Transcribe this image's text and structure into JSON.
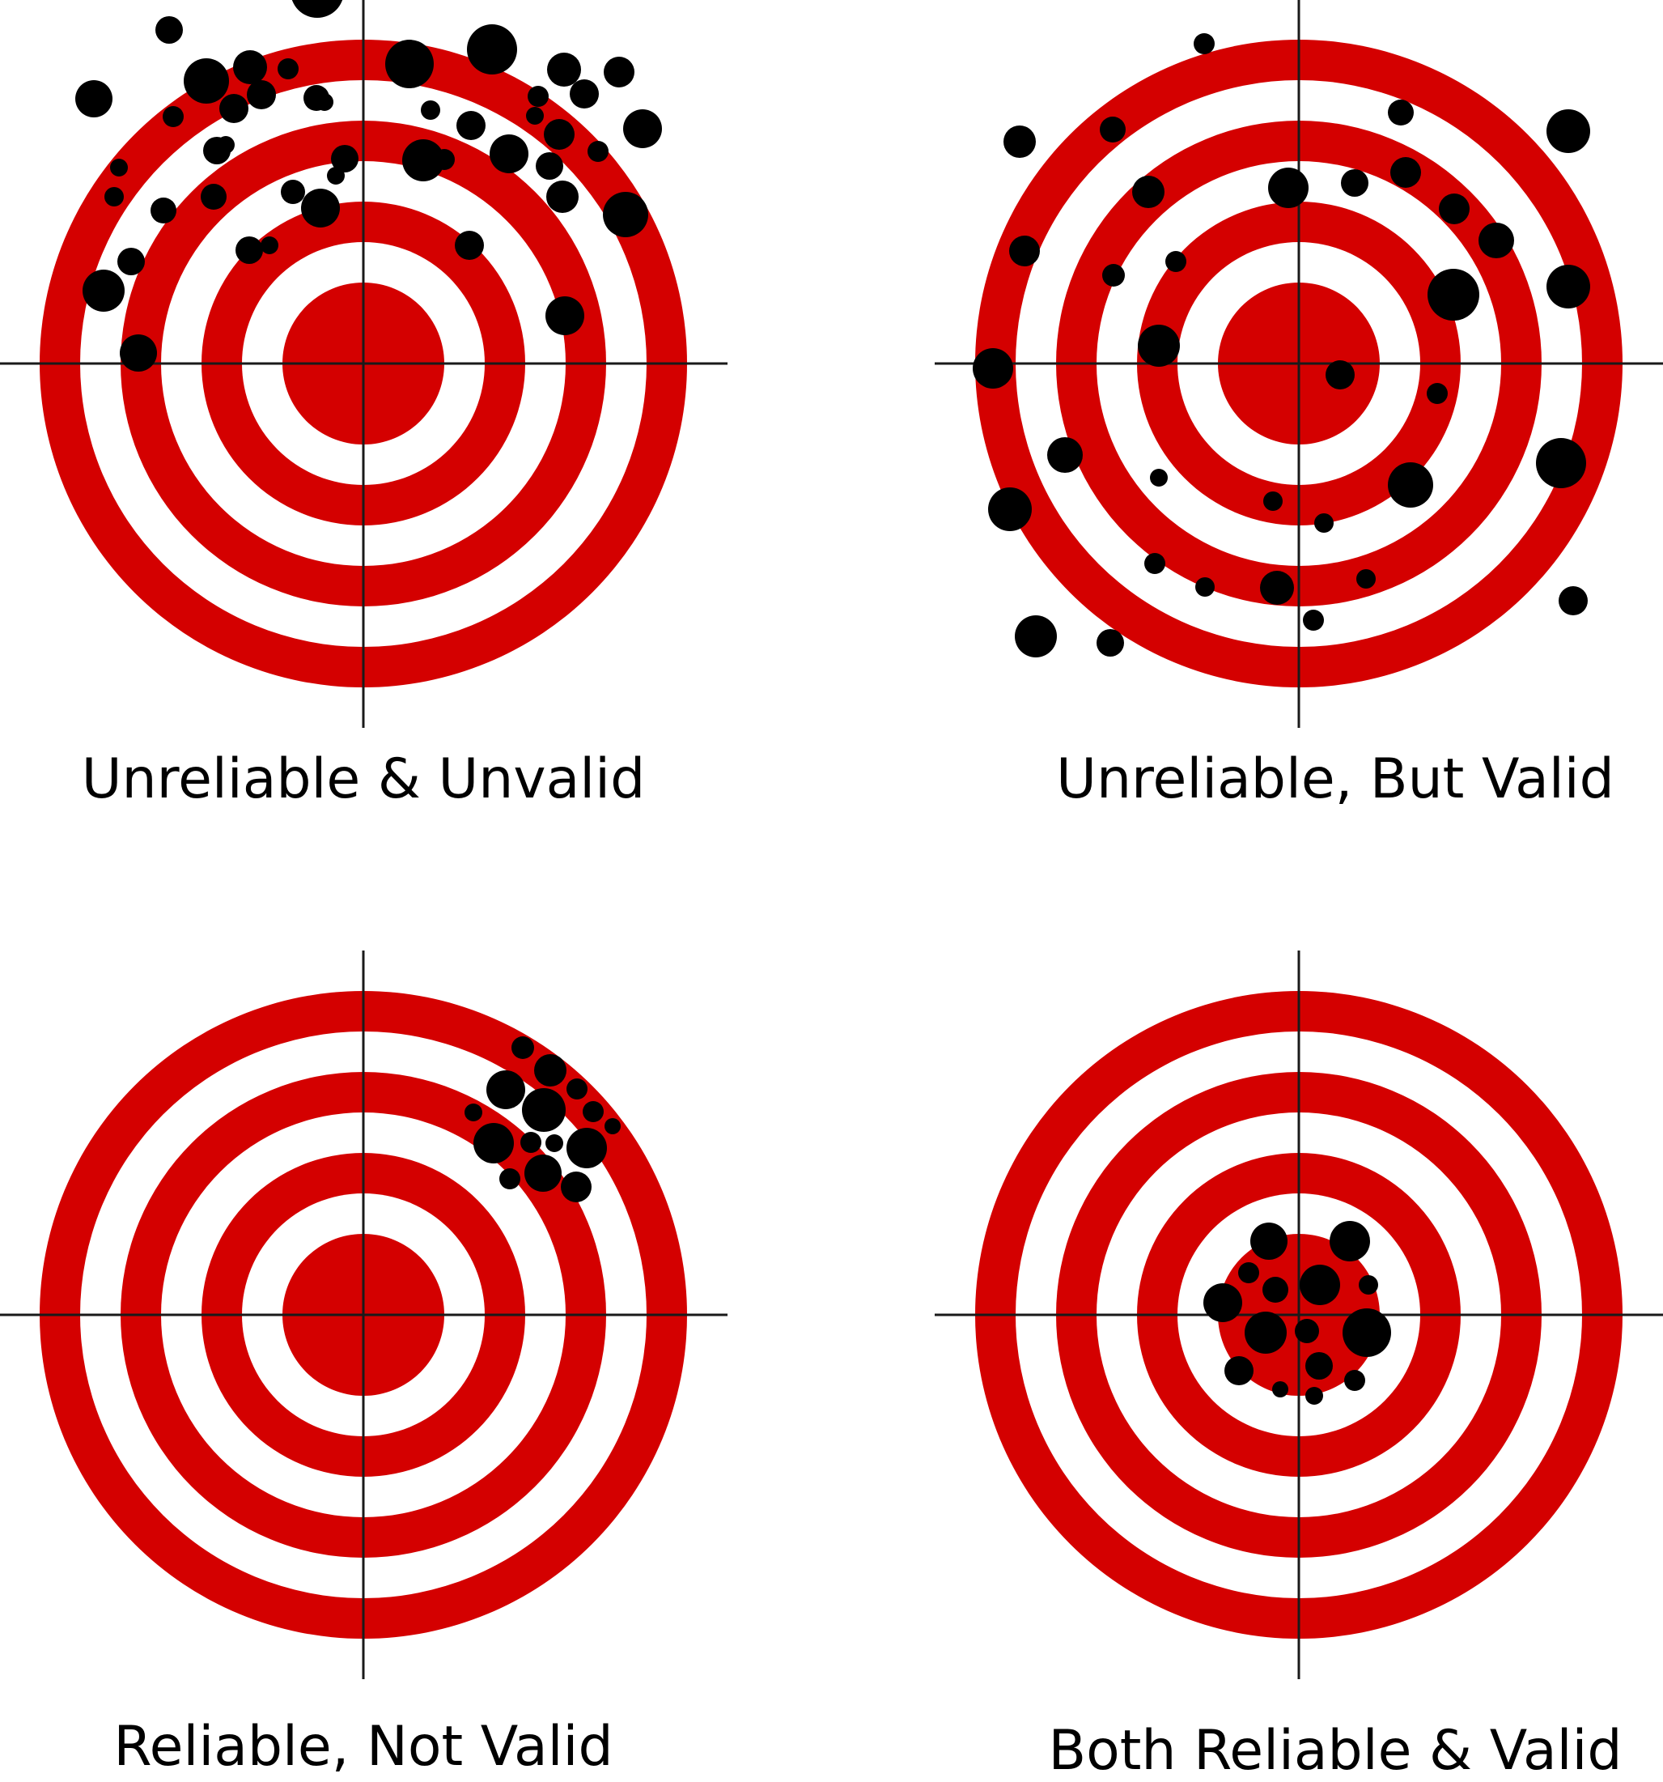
{
  "colors": {
    "ring_red": "#d40000",
    "ring_white": "#ffffff",
    "crosshair": "#1a1a1a",
    "hole": "#000000",
    "caption": "#000000"
  },
  "targets": [
    {
      "key": "unreliable-unvalid",
      "label": "Unreliable & Unvalid",
      "holes": [
        [
          -333,
          -327,
          23
        ],
        [
          -194,
          -349,
          28
        ],
        [
          -93,
          -364,
          13
        ],
        [
          -57,
          -460,
          33
        ],
        [
          -235,
          -305,
          13
        ],
        [
          -160,
          -315,
          18
        ],
        [
          -302,
          -242,
          11
        ],
        [
          -308,
          -206,
          12
        ],
        [
          -181,
          -263,
          17
        ],
        [
          -240,
          -412,
          17
        ],
        [
          -140,
          -366,
          21
        ],
        [
          -126,
          -332,
          18
        ],
        [
          -58,
          -328,
          16
        ],
        [
          -34,
          -232,
          11
        ],
        [
          -48,
          -323,
          11
        ],
        [
          -321,
          -90,
          26
        ],
        [
          -287,
          -126,
          17
        ],
        [
          -141,
          -140,
          17
        ],
        [
          -185,
          -206,
          16
        ],
        [
          -247,
          -189,
          16
        ],
        [
          -116,
          -146,
          11
        ],
        [
          -278,
          -13,
          23
        ],
        [
          -170,
          -270,
          11
        ],
        [
          -23,
          -253,
          17
        ],
        [
          -53,
          -192,
          24
        ],
        [
          57,
          -370,
          30
        ],
        [
          83,
          -313,
          12
        ],
        [
          159,
          -388,
          31
        ],
        [
          133,
          -294,
          18
        ],
        [
          216,
          -330,
          13
        ],
        [
          212,
          -306,
          11
        ],
        [
          248,
          -363,
          21
        ],
        [
          242,
          -283,
          19
        ],
        [
          -87,
          -212,
          15
        ],
        [
          74,
          -251,
          26
        ],
        [
          100,
          -252,
          13
        ],
        [
          180,
          -259,
          24
        ],
        [
          230,
          -244,
          17
        ],
        [
          324,
          -184,
          28
        ],
        [
          246,
          -206,
          20
        ],
        [
          316,
          -360,
          19
        ],
        [
          345,
          -290,
          24
        ],
        [
          290,
          -262,
          13
        ],
        [
          273,
          -333,
          18
        ],
        [
          131,
          -146,
          18
        ],
        [
          249,
          -59,
          24
        ]
      ]
    },
    {
      "key": "unreliable-valid",
      "label": "Unreliable, But Valid",
      "holes": [
        [
          -117,
          -395,
          13
        ],
        [
          -345,
          -274,
          20
        ],
        [
          -230,
          -289,
          16
        ],
        [
          -186,
          -212,
          20
        ],
        [
          -339,
          -139,
          19
        ],
        [
          -229,
          -109,
          14
        ],
        [
          -152,
          -126,
          13
        ],
        [
          -173,
          -22,
          26
        ],
        [
          -378,
          6,
          25
        ],
        [
          -289,
          113,
          22
        ],
        [
          -357,
          180,
          27
        ],
        [
          -173,
          141,
          11
        ],
        [
          -32,
          170,
          12
        ],
        [
          31,
          197,
          12
        ],
        [
          -178,
          247,
          13
        ],
        [
          -116,
          276,
          12
        ],
        [
          -27,
          277,
          21
        ],
        [
          83,
          266,
          12
        ],
        [
          18,
          317,
          13
        ],
        [
          -325,
          337,
          26
        ],
        [
          -233,
          345,
          17
        ],
        [
          126,
          -310,
          16
        ],
        [
          -13,
          -217,
          25
        ],
        [
          69,
          -223,
          17
        ],
        [
          132,
          -236,
          19
        ],
        [
          192,
          -191,
          19
        ],
        [
          244,
          -152,
          22
        ],
        [
          191,
          -85,
          32
        ],
        [
          333,
          -287,
          27
        ],
        [
          333,
          -95,
          27
        ],
        [
          171,
          37,
          13
        ],
        [
          51,
          14,
          18
        ],
        [
          138,
          150,
          28
        ],
        [
          324,
          123,
          31
        ],
        [
          339,
          293,
          18
        ]
      ]
    },
    {
      "key": "reliable-not-valid",
      "label": "Reliable, Not Valid",
      "holes": [
        [
          197,
          -330,
          14
        ],
        [
          231,
          -302,
          20
        ],
        [
          176,
          -278,
          24
        ],
        [
          264,
          -279,
          13
        ],
        [
          223,
          -253,
          27
        ],
        [
          284,
          -251,
          13
        ],
        [
          136,
          -250,
          11
        ],
        [
          308,
          -233,
          10
        ],
        [
          161,
          -212,
          25
        ],
        [
          207,
          -213,
          13
        ],
        [
          236,
          -212,
          11
        ],
        [
          276,
          -206,
          25
        ],
        [
          222,
          -175,
          23
        ],
        [
          181,
          -168,
          13
        ],
        [
          263,
          -158,
          19
        ]
      ]
    },
    {
      "key": "both-reliable-valid",
      "label": "Both Reliable & Valid",
      "holes": [
        [
          -37,
          -91,
          23
        ],
        [
          63,
          -91,
          25
        ],
        [
          -62,
          -52,
          13
        ],
        [
          -29,
          -31,
          16
        ],
        [
          26,
          -37,
          25
        ],
        [
          86,
          -37,
          12
        ],
        [
          -94,
          -15,
          24
        ],
        [
          -41,
          22,
          26
        ],
        [
          10,
          20,
          15
        ],
        [
          84,
          22,
          30
        ],
        [
          -74,
          69,
          18
        ],
        [
          25,
          63,
          17
        ],
        [
          69,
          81,
          13
        ],
        [
          -23,
          92,
          10
        ],
        [
          19,
          100,
          11
        ]
      ]
    }
  ]
}
